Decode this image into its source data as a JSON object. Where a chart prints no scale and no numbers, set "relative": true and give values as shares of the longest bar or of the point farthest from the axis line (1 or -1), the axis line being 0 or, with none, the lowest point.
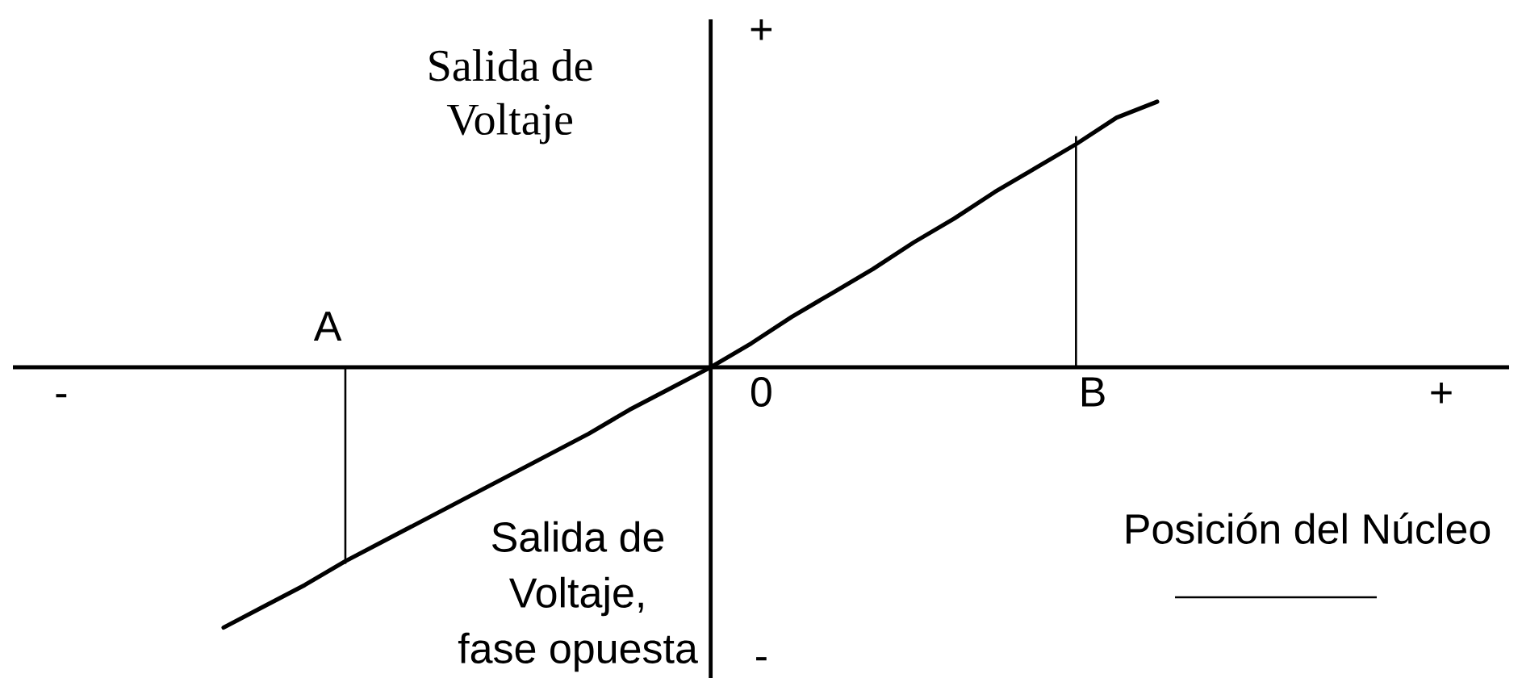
{
  "chart_data": {
    "type": "line",
    "relative": true,
    "xlabel": "Posición del Núcleo",
    "ylabel": "Salida de Voltaje",
    "categories": [
      "-",
      null,
      null,
      null,
      null,
      null,
      null,
      null,
      null,
      null,
      null,
      null,
      null,
      null,
      null,
      null,
      null,
      null,
      null,
      null,
      null,
      null,
      null,
      null,
      null,
      null,
      null,
      null,
      null,
      null,
      null,
      null,
      null,
      null,
      "+"
    ],
    "series": [
      {
        "color": "#000000",
        "values": [
          null,
          null,
          null,
          null,
          -0.98,
          -0.9,
          -0.82,
          -0.73,
          -0.65,
          -0.57,
          -0.49,
          -0.41,
          -0.33,
          -0.25,
          -0.16,
          -0.08,
          0,
          0.09,
          0.19,
          0.28,
          0.37,
          0.47,
          0.56,
          0.66,
          0.75,
          0.84,
          0.94,
          1,
          null,
          null,
          null,
          null,
          null,
          null,
          null
        ]
      },
      {
        "type": "bar",
        "color": "#000000",
        "values": [
          null,
          null,
          null,
          null,
          null,
          null,
          null,
          -0.74,
          null,
          null,
          null,
          null,
          null,
          null,
          null,
          null,
          null,
          null,
          null,
          null,
          null,
          null,
          null,
          null,
          null,
          0.87,
          null,
          null,
          null,
          null,
          null,
          null,
          null,
          null,
          null
        ]
      }
    ],
    "annotations": [
      "+",
      "A",
      "0",
      "B",
      "Salida de Voltaje, fase opuesta",
      "-"
    ]
  }
}
